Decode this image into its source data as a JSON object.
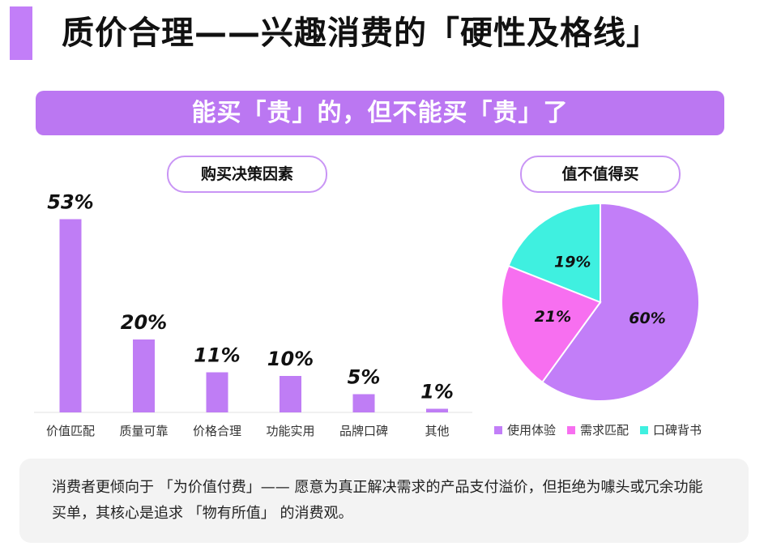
{
  "header": {
    "title": "质价合理——兴趣消费的「硬性及格线」"
  },
  "banner": {
    "text": "能买「贵」的，但不能买「贵」了"
  },
  "chart_data": [
    {
      "type": "bar",
      "title": "购买决策因素",
      "categories": [
        "价值匹配",
        "质量可靠",
        "价格合理",
        "功能实用",
        "品牌口碑",
        "其他"
      ],
      "values": [
        53,
        20,
        11,
        10,
        5,
        1
      ],
      "value_labels": [
        "53%",
        "20%",
        "11%",
        "10%",
        "5%",
        "1%"
      ],
      "ylim": [
        0,
        60
      ],
      "grid": false,
      "color": "#bf7df5"
    },
    {
      "type": "pie",
      "title": "值不值得买",
      "labels": [
        "使用体验",
        "需求匹配",
        "口碑背书"
      ],
      "values": [
        60,
        21,
        19
      ],
      "value_labels": [
        "60%",
        "21%",
        "19%"
      ],
      "colors": [
        "#c27ef8",
        "#f76ff0",
        "#3ff0e0"
      ],
      "legend_position": "bottom"
    }
  ],
  "summary": {
    "text": "消费者更倾向于 「为价值付费」—— 愿意为真正解决需求的产品支付溢价，但拒绝为噱头或冗余功能买单，其核心是追求 「物有所值」 的消费观。"
  }
}
